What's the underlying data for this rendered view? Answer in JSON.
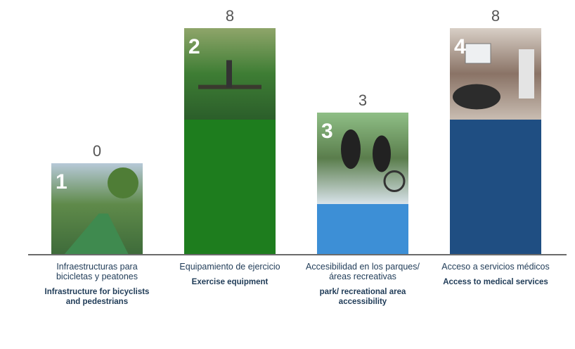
{
  "chart_data": {
    "type": "bar",
    "categories": [
      {
        "number": "1",
        "label_es": "Infraestructuras para bicicletas y peatones",
        "label_en": "Infrastructure for bicyclists and pedestrians",
        "icon": "bike-lane-photo"
      },
      {
        "number": "2",
        "label_es": "Equipamiento de ejercicio",
        "label_en": "Exercise equipment",
        "icon": "outdoor-gym-photo"
      },
      {
        "number": "3",
        "label_es": "Accesibilidad en los parques/áreas recreativas",
        "label_en": "park/ recreational area accessibility",
        "icon": "wheelchair-park-photo"
      },
      {
        "number": "4",
        "label_es": "Acceso a servicios médicos",
        "label_en": "Access to medical services",
        "icon": "clinic-photo"
      }
    ],
    "values": [
      0,
      8,
      3,
      8
    ],
    "value_labels": [
      "0",
      "8",
      "3",
      "8"
    ],
    "colors": [
      "#9e9e9e",
      "#1e7d1e",
      "#3d8fd6",
      "#1f4e82"
    ],
    "ylim": [
      0,
      8
    ],
    "grid": false,
    "legend": "none"
  }
}
